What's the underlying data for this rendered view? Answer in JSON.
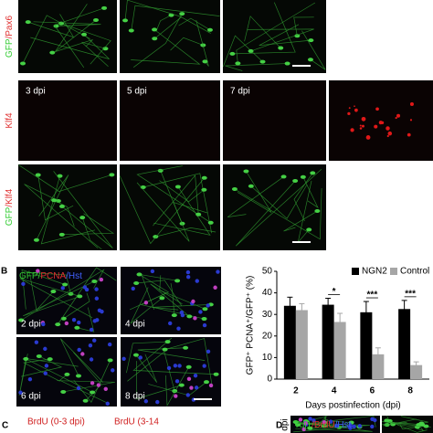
{
  "figure": {
    "panel_a": {
      "rows": [
        {
          "label": [
            {
              "text": "GFP",
              "color": "#33cc33"
            },
            {
              "text": "/Pax6",
              "color": "#e03030"
            }
          ],
          "captions": [
            null,
            null,
            null
          ],
          "tones": [
            "green",
            "green",
            "green"
          ]
        },
        {
          "label": [
            {
              "text": "Klf4",
              "color": "#e03030"
            }
          ],
          "captions": [
            "3 dpi",
            "5 dpi",
            "7 dpi",
            null
          ],
          "tones": [
            "dark",
            "dark",
            "dark",
            "red"
          ]
        },
        {
          "label": [
            {
              "text": "GFP",
              "color": "#33cc33"
            },
            {
              "text": "/Klf4",
              "color": "#e03030"
            }
          ],
          "captions": [
            null,
            null,
            null
          ],
          "tones": [
            "green",
            "green",
            "green"
          ]
        }
      ]
    },
    "panel_b": {
      "letter": "B",
      "label": [
        {
          "text": "GFP/",
          "color": "#33cc33"
        },
        {
          "text": "PCNA",
          "color": "#e03030"
        },
        {
          "text": "/Hst",
          "color": "#4060ff"
        }
      ],
      "captions": [
        "2 dpi",
        "4 dpi",
        "6 dpi",
        "8 dpi"
      ]
    },
    "panel_c": {
      "letter": "C",
      "captions": [
        "BrdU (0-3 dpi)",
        "BrdU (3-14"
      ]
    },
    "panel_d": {
      "letter": "D",
      "label": [
        {
          "text": "Tuj1",
          "color": "#33cc33"
        },
        {
          "text": "/BrdU",
          "color": "#e03030"
        },
        {
          "text": "/Hst",
          "color": "#4060ff"
        }
      ],
      "side_label": "dpi"
    }
  },
  "chart_data": {
    "type": "bar",
    "ylabel": "GFP⁺ PCNA⁺/GFP⁺ (%)",
    "xlabel": "Days postinfection (dpi)",
    "categories": [
      "2",
      "4",
      "6",
      "8"
    ],
    "series": [
      {
        "name": "NGN2",
        "color": "#000000",
        "values": [
          34,
          34.5,
          31,
          32.5
        ],
        "errors": [
          4,
          3,
          5,
          4
        ]
      },
      {
        "name": "Control",
        "color": "#a6a6a6",
        "values": [
          32,
          26.5,
          11.5,
          6.5
        ],
        "errors": [
          3,
          4,
          3,
          1.5
        ]
      }
    ],
    "significance": [
      null,
      "*",
      "***",
      "***"
    ],
    "ylim": [
      0,
      50
    ],
    "yticks": [
      0,
      10,
      20,
      30,
      40,
      50
    ],
    "legend": "top-right"
  }
}
